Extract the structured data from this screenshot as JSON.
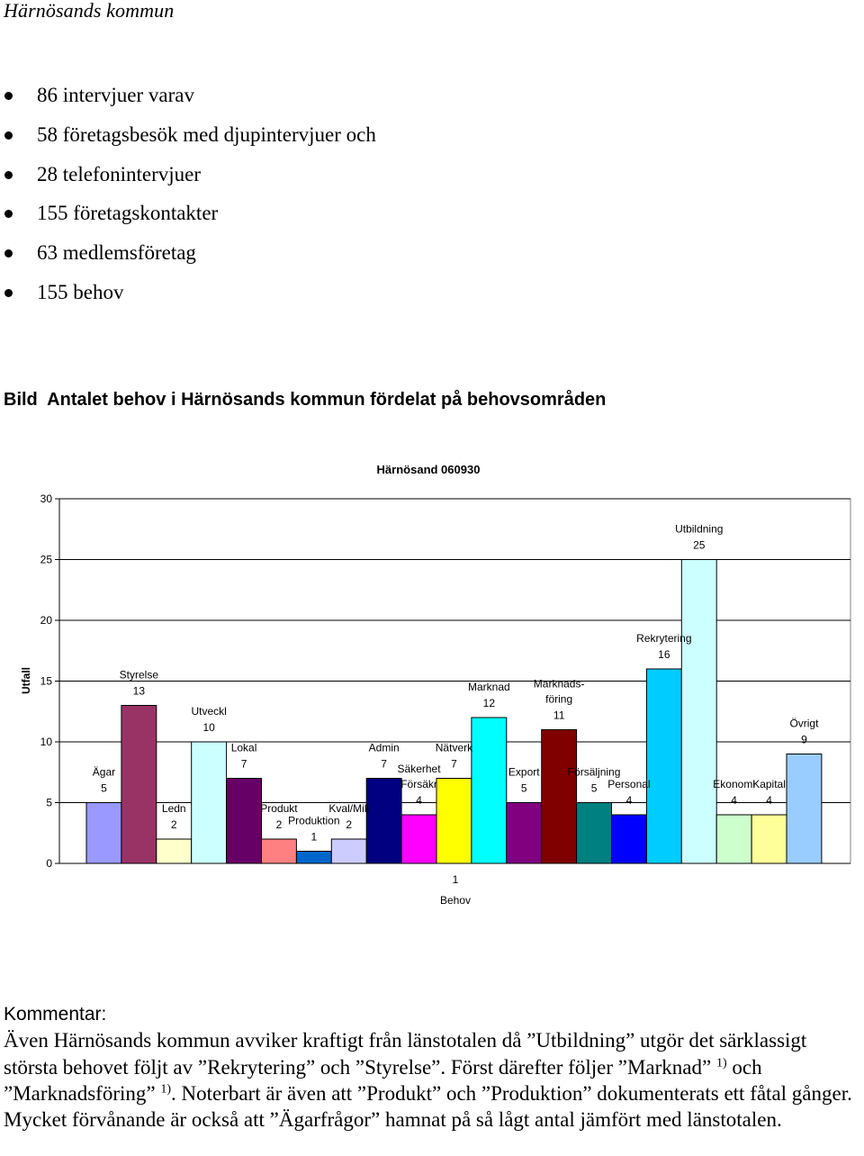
{
  "header": "Härnösands kommun",
  "bullets": [
    "86 intervjuer varav",
    "58 företagsbesök med djupintervjuer och",
    "28 telefonintervjuer",
    "155 företagskontakter",
    "63 medlemsföretag",
    "155 behov"
  ],
  "caption": {
    "prefix": "Bild",
    "text": "Antalet behov i Härnösands kommun fördelat på behovsområden"
  },
  "chart_data": {
    "type": "bar",
    "title": "Härnösand 060930",
    "ylabel": "Utfall",
    "xlabel": "Behov",
    "x_tick": "1",
    "ylim": [
      0,
      30
    ],
    "yticks": [
      0,
      5,
      10,
      15,
      20,
      25,
      30
    ],
    "grid": true,
    "legend": "none",
    "series": [
      {
        "name": "Ägar",
        "value": 5,
        "color": "#9999ff"
      },
      {
        "name": "Styrelse",
        "value": 13,
        "color": "#993366"
      },
      {
        "name": "Ledn",
        "value": 2,
        "color": "#ffffcc"
      },
      {
        "name": "Utveckl",
        "value": 10,
        "color": "#ccffff"
      },
      {
        "name": "Lokal",
        "value": 7,
        "color": "#660066"
      },
      {
        "name": "Produkt",
        "value": 2,
        "color": "#ff8080"
      },
      {
        "name": "Produktion",
        "value": 1,
        "color": "#0066cc"
      },
      {
        "name": "Kval/Milj",
        "value": 2,
        "color": "#ccccff"
      },
      {
        "name": "Admin",
        "value": 7,
        "color": "#000080"
      },
      {
        "name": "Säkerhet Försäkr",
        "value": 4,
        "color": "#ff00ff"
      },
      {
        "name": "Nätverk",
        "value": 7,
        "color": "#ffff00"
      },
      {
        "name": "Marknad",
        "value": 12,
        "color": "#00ffff"
      },
      {
        "name": "Export",
        "value": 5,
        "color": "#800080"
      },
      {
        "name": "Marknads-föring",
        "value": 11,
        "color": "#800000"
      },
      {
        "name": "Försäljning",
        "value": 5,
        "color": "#008080"
      },
      {
        "name": "Personal",
        "value": 4,
        "color": "#0000ff"
      },
      {
        "name": "Rekrytering",
        "value": 16,
        "color": "#00ccff"
      },
      {
        "name": "Utbildning",
        "value": 25,
        "color": "#ccffff"
      },
      {
        "name": "Ekonomi",
        "value": 4,
        "color": "#ccffcc"
      },
      {
        "name": "Kapital",
        "value": 4,
        "color": "#ffff99"
      },
      {
        "name": "Övrigt",
        "value": 9,
        "color": "#99ccff"
      }
    ]
  },
  "comment": {
    "label": "Kommentar:",
    "text_1": "Även Härnösands kommun avviker kraftigt från länstotalen då ”Utbildning” utgör det särklassigt största behovet följt av ”Rekrytering” och ”Styrelse”. Först därefter följer ”Marknad” ",
    "sup_1": "1)",
    "text_2": " och ”Marknadsföring” ",
    "sup_2": "1)",
    "text_3": ". Noterbart är även att ”Produkt” och ”Produktion” dokumenterats ett fåtal gånger. Mycket förvånande är också att ”Ägarfrågor” hamnat på så lågt antal jämfört med länstotalen."
  }
}
